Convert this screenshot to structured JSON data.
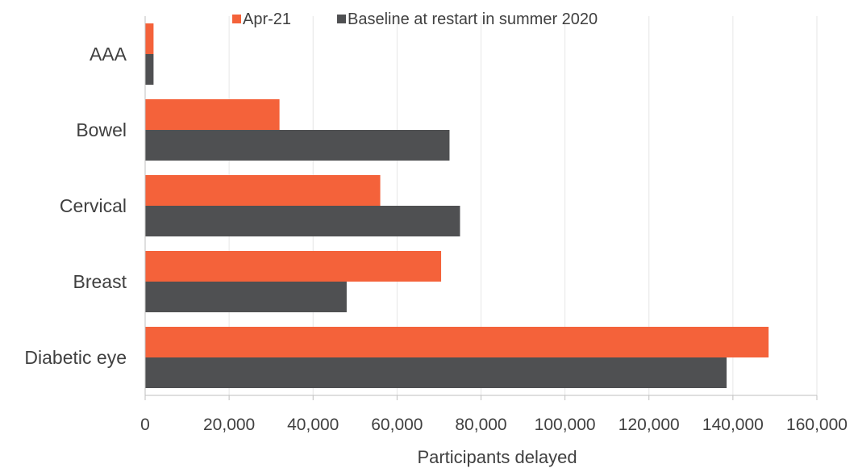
{
  "chart_data": {
    "type": "bar",
    "orientation": "horizontal",
    "title": "",
    "xlabel": "Participants delayed",
    "ylabel": "",
    "categories": [
      "AAA",
      "Bowel",
      "Cervical",
      "Breast",
      "Diabetic eye"
    ],
    "series": [
      {
        "name": "Apr-21",
        "color": "#f4623a",
        "values": [
          2000,
          32000,
          56000,
          70500,
          148500
        ]
      },
      {
        "name": "Baseline at restart in summer 2020",
        "color": "#4f5052",
        "values": [
          2000,
          72500,
          75000,
          48000,
          138500
        ]
      }
    ],
    "xlim": [
      0,
      160000
    ],
    "xticks": [
      0,
      20000,
      40000,
      60000,
      80000,
      100000,
      120000,
      140000,
      160000
    ],
    "xtick_labels": [
      "0",
      "20,000",
      "40,000",
      "60,000",
      "80,000",
      "100,000",
      "120,000",
      "140,000",
      "160,000"
    ],
    "grid": true,
    "legend_position": "top"
  }
}
